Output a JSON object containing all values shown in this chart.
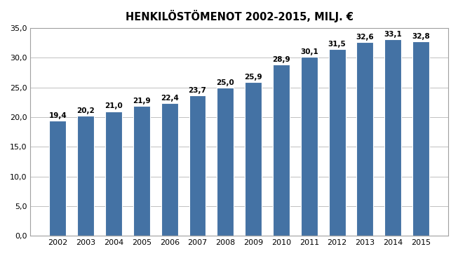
{
  "title": "HENKILÖSTÖMENOT 2002-2015, MILJ. €",
  "years": [
    2002,
    2003,
    2004,
    2005,
    2006,
    2007,
    2008,
    2009,
    2010,
    2011,
    2012,
    2013,
    2014,
    2015
  ],
  "values": [
    19.4,
    20.2,
    21.0,
    21.9,
    22.4,
    23.7,
    25.0,
    25.9,
    28.9,
    30.1,
    31.5,
    32.6,
    33.1,
    32.8
  ],
  "bar_color": "#4472a4",
  "bar_edge_color": "#ffffff",
  "background_color": "#ffffff",
  "grid_color": "#c0c0c0",
  "ylim": [
    0,
    35
  ],
  "yticks": [
    0.0,
    5.0,
    10.0,
    15.0,
    20.0,
    25.0,
    30.0,
    35.0
  ],
  "ytick_labels": [
    "0,0",
    "5,0",
    "10,0",
    "15,0",
    "20,0",
    "25,0",
    "30,0",
    "35,0"
  ],
  "label_fontsize": 7.5,
  "title_fontsize": 10.5,
  "axis_fontsize": 8,
  "value_labels": [
    "19,4",
    "20,2",
    "21,0",
    "21,9",
    "22,4",
    "23,7",
    "25,0",
    "25,9",
    "28,9",
    "30,1",
    "31,5",
    "32,6",
    "33,1",
    "32,8"
  ],
  "border_color": "#a0a0a0"
}
